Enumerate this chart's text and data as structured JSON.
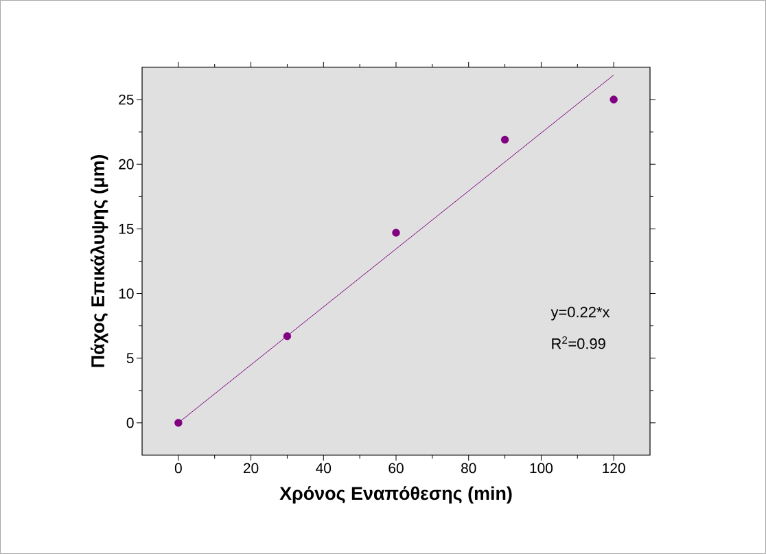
{
  "chart_data": {
    "type": "scatter",
    "xlabel": "Χρόνος Εναπόθεσης (min)",
    "ylabel": "Πάχος Επικάλυψης (μm)",
    "xlim": [
      -10,
      130
    ],
    "ylim": [
      -2.5,
      27.5
    ],
    "xticks": [
      0,
      20,
      40,
      60,
      80,
      100,
      120
    ],
    "yticks": [
      0,
      5,
      10,
      15,
      20,
      25
    ],
    "series": [
      {
        "color": "#800080",
        "marker": "circle",
        "x": [
          0,
          30,
          60,
          90,
          120
        ],
        "values": [
          0,
          6.7,
          14.7,
          21.9,
          25
        ]
      },
      {
        "type": "line",
        "color": "#800080",
        "marker": "none",
        "line_style": "solid",
        "x": [
          0,
          120
        ],
        "values": [
          0,
          26.9
        ]
      }
    ],
    "annotations": [
      "y=0.22*x",
      "R$^{2}$=0.99"
    ],
    "grid": false
  }
}
